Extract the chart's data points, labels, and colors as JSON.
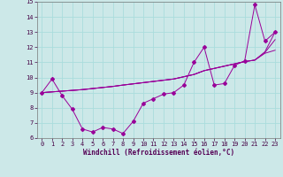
{
  "xlabel": "Windchill (Refroidissement éolien,°C)",
  "x": [
    0,
    1,
    2,
    3,
    4,
    5,
    6,
    7,
    8,
    9,
    10,
    11,
    12,
    13,
    14,
    15,
    16,
    17,
    18,
    19,
    20,
    21,
    22,
    23
  ],
  "series1": [
    9.0,
    9.9,
    8.8,
    7.9,
    6.6,
    6.4,
    6.7,
    6.6,
    6.3,
    7.1,
    8.3,
    8.6,
    8.9,
    9.0,
    9.5,
    11.0,
    12.0,
    9.5,
    9.6,
    10.8,
    11.1,
    14.8,
    12.4,
    13.0
  ],
  "series2": [
    9.0,
    9.05,
    9.1,
    9.15,
    9.2,
    9.27,
    9.34,
    9.41,
    9.5,
    9.58,
    9.66,
    9.74,
    9.82,
    9.9,
    10.05,
    10.2,
    10.45,
    10.6,
    10.75,
    10.9,
    11.05,
    11.15,
    11.6,
    11.8
  ],
  "series3": [
    9.0,
    9.05,
    9.1,
    9.15,
    9.2,
    9.27,
    9.34,
    9.41,
    9.5,
    9.58,
    9.66,
    9.74,
    9.82,
    9.9,
    10.05,
    10.2,
    10.45,
    10.6,
    10.75,
    10.9,
    11.05,
    11.15,
    11.7,
    13.0
  ],
  "series4": [
    9.0,
    9.05,
    9.1,
    9.15,
    9.2,
    9.27,
    9.34,
    9.41,
    9.5,
    9.58,
    9.66,
    9.74,
    9.82,
    9.9,
    10.05,
    10.2,
    10.45,
    10.6,
    10.75,
    10.9,
    11.05,
    11.15,
    11.65,
    12.5
  ],
  "line_color": "#990099",
  "bg_color": "#cce8e8",
  "grid_color": "#aadddd",
  "ylim": [
    6,
    15
  ],
  "xlim": [
    -0.5,
    23.5
  ],
  "yticks": [
    6,
    7,
    8,
    9,
    10,
    11,
    12,
    13,
    14,
    15
  ],
  "xticks": [
    0,
    1,
    2,
    3,
    4,
    5,
    6,
    7,
    8,
    9,
    10,
    11,
    12,
    13,
    14,
    15,
    16,
    17,
    18,
    19,
    20,
    21,
    22,
    23
  ]
}
